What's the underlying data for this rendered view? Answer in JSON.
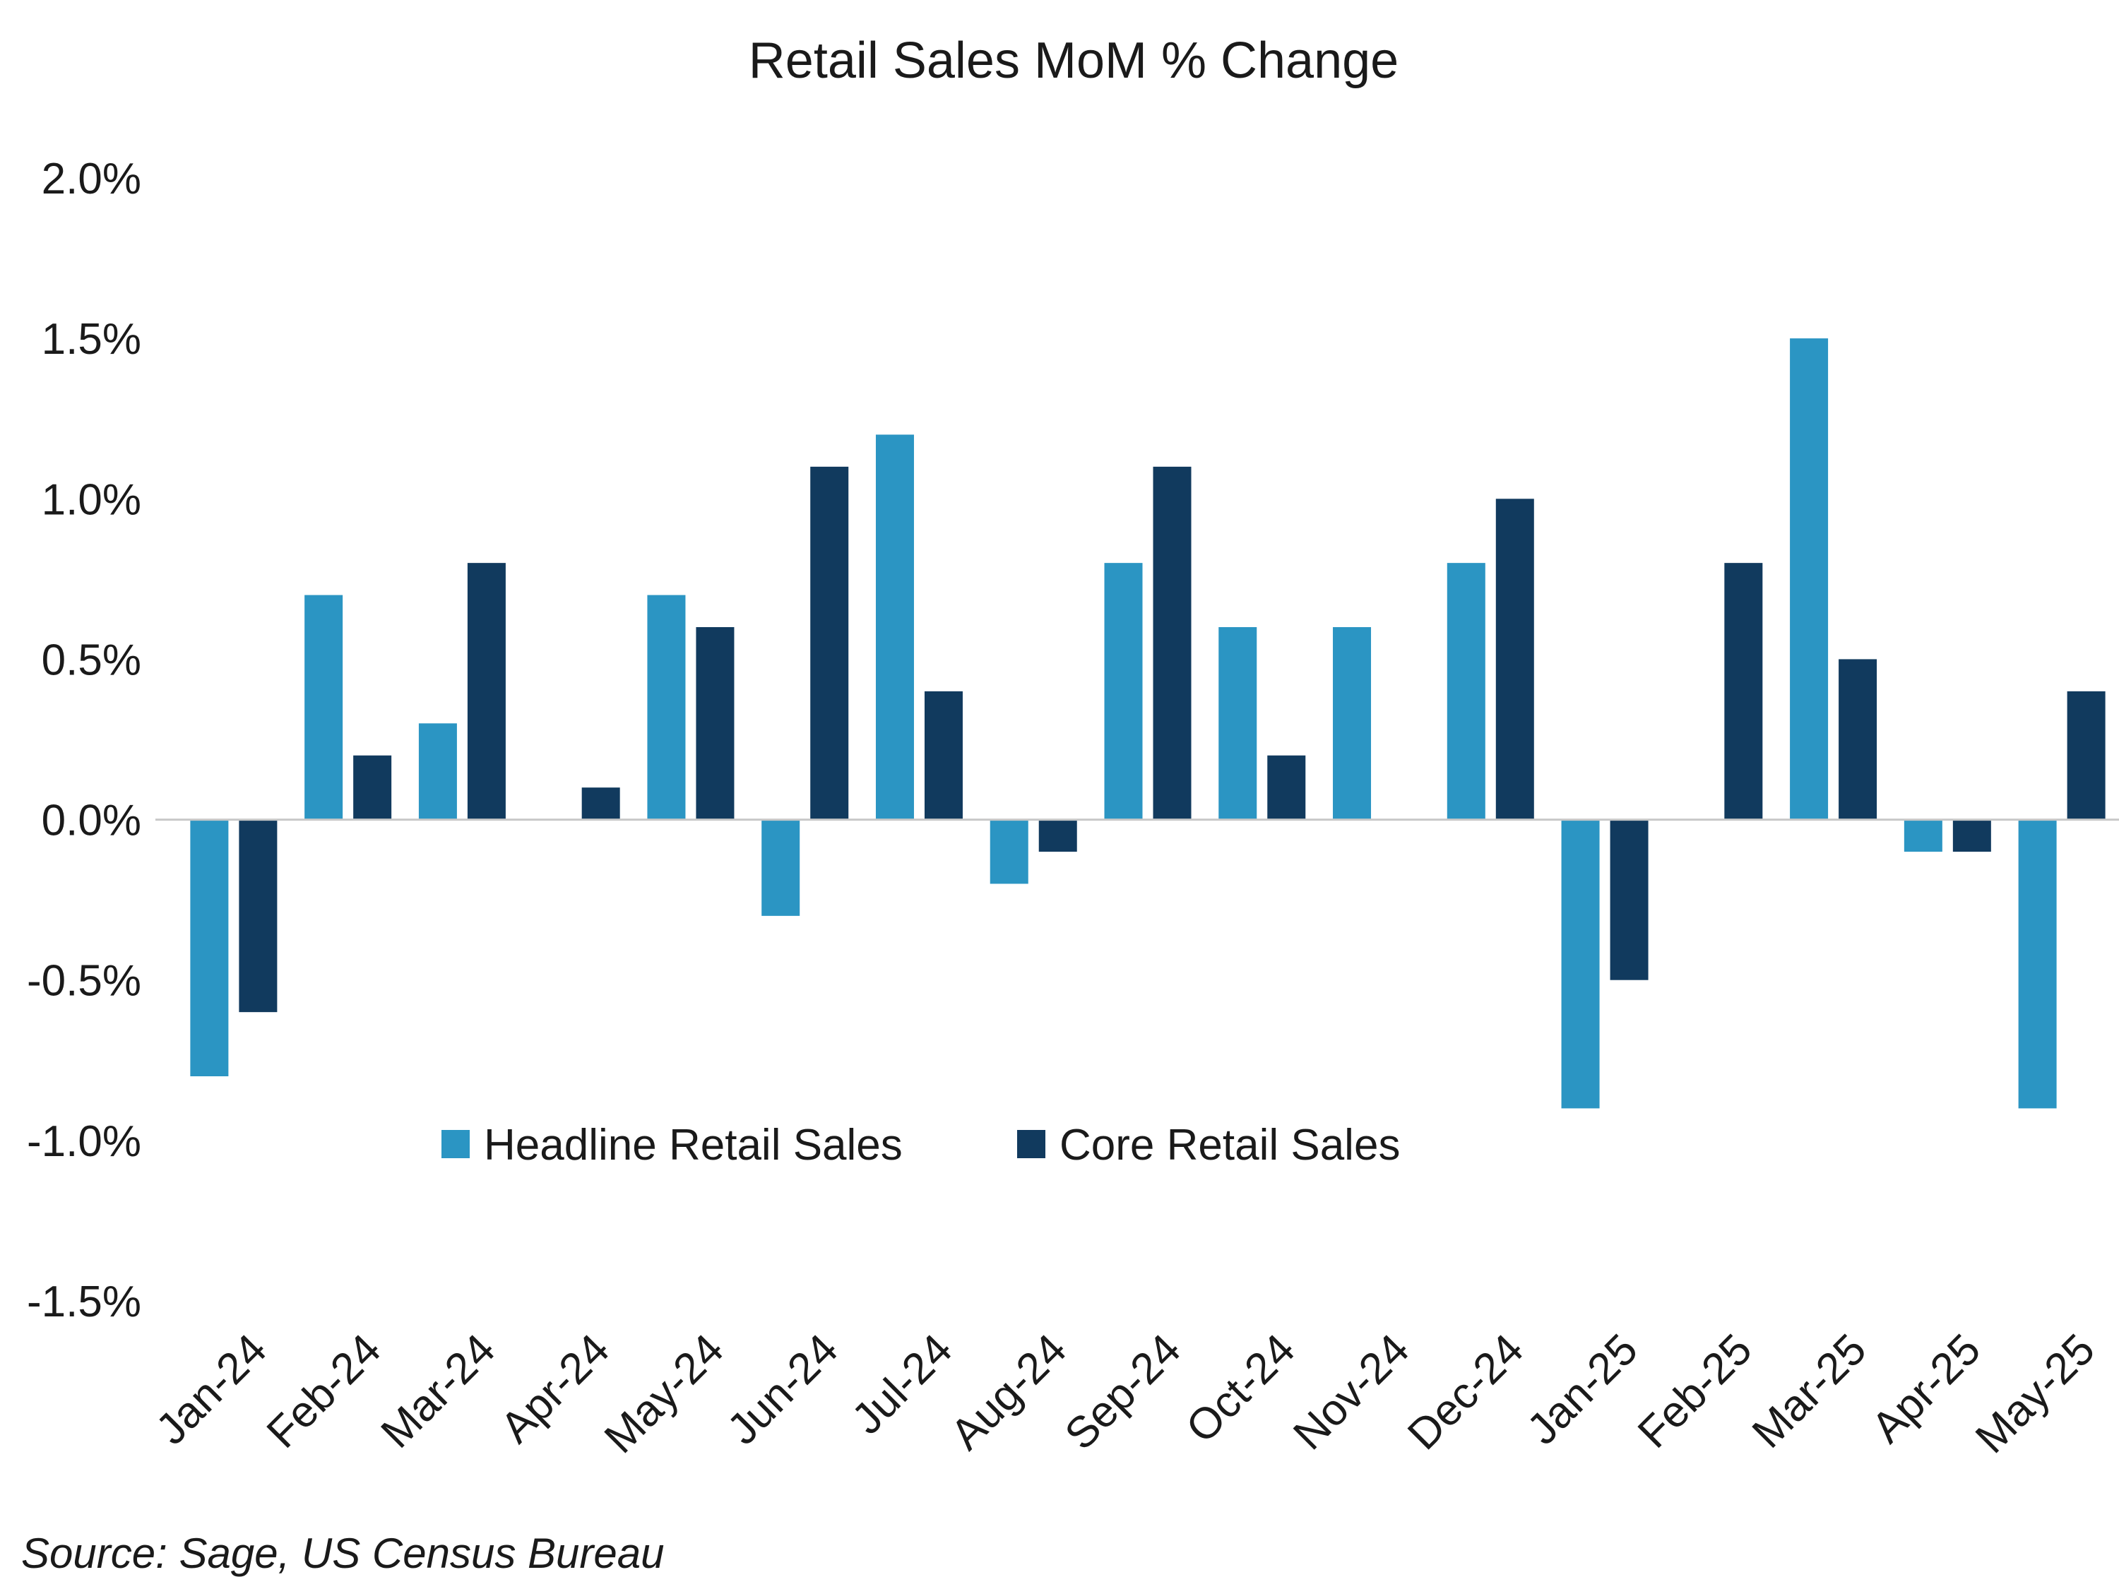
{
  "chart_data": {
    "type": "bar",
    "title": "Retail Sales MoM % Change",
    "xlabel": "",
    "ylabel": "",
    "categories": [
      "Jan-24",
      "Feb-24",
      "Mar-24",
      "Apr-24",
      "May-24",
      "Jun-24",
      "Jul-24",
      "Aug-24",
      "Sep-24",
      "Oct-24",
      "Nov-24",
      "Dec-24",
      "Jan-25",
      "Feb-25",
      "Mar-25",
      "Apr-25",
      "May-25"
    ],
    "series": [
      {
        "name": "Headline Retail Sales",
        "color": "#2b95c3",
        "values": [
          -0.8,
          0.7,
          0.3,
          0.0,
          0.7,
          -0.3,
          1.2,
          -0.2,
          0.8,
          0.6,
          0.6,
          0.8,
          -0.9,
          0.0,
          1.5,
          -0.1,
          -0.9
        ]
      },
      {
        "name": "Core Retail Sales",
        "color": "#113a5e",
        "values": [
          -0.6,
          0.2,
          0.8,
          0.1,
          0.6,
          1.1,
          0.4,
          -0.1,
          1.1,
          0.2,
          0.0,
          1.0,
          -0.5,
          0.8,
          0.5,
          -0.1,
          0.4
        ]
      }
    ],
    "ylim": [
      -1.5,
      2.0
    ],
    "yticks": [
      "2.0%",
      "1.5%",
      "1.0%",
      "0.5%",
      "0.0%",
      "-0.5%",
      "-1.0%",
      "-1.5%"
    ],
    "ytick_values": [
      2.0,
      1.5,
      1.0,
      0.5,
      0.0,
      -0.5,
      -1.0,
      -1.5
    ],
    "grid": false,
    "legend_position": "bottom-center inside plot",
    "source": "Source: Sage, US Census Bureau"
  }
}
